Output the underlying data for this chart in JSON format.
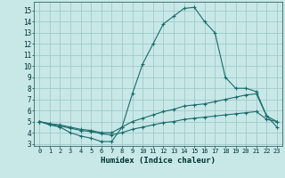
{
  "xlabel": "Humidex (Indice chaleur)",
  "background_color": "#c8e8e8",
  "grid_color": "#a0c8c8",
  "line_color": "#1a6b6b",
  "xlim": [
    -0.5,
    23.5
  ],
  "ylim": [
    2.8,
    15.8
  ],
  "xticks": [
    0,
    1,
    2,
    3,
    4,
    5,
    6,
    7,
    8,
    9,
    10,
    11,
    12,
    13,
    14,
    15,
    16,
    17,
    18,
    19,
    20,
    21,
    22,
    23
  ],
  "yticks": [
    3,
    4,
    5,
    6,
    7,
    8,
    9,
    10,
    11,
    12,
    13,
    14,
    15
  ],
  "curve1_x": [
    0,
    1,
    2,
    3,
    4,
    5,
    6,
    7,
    8,
    9,
    10,
    11,
    12,
    13,
    14,
    15,
    16,
    17,
    18,
    19,
    20,
    21,
    22,
    23
  ],
  "curve1_y": [
    5.0,
    4.7,
    4.5,
    4.0,
    3.7,
    3.5,
    3.2,
    3.2,
    4.5,
    7.5,
    10.2,
    12.0,
    13.8,
    14.5,
    15.2,
    15.3,
    14.0,
    13.0,
    9.0,
    8.0,
    8.0,
    7.7,
    5.5,
    4.5
  ],
  "curve2_x": [
    0,
    1,
    2,
    3,
    4,
    5,
    6,
    7,
    8,
    9,
    10,
    11,
    12,
    13,
    14,
    15,
    16,
    17,
    18,
    19,
    20,
    21,
    22,
    23
  ],
  "curve2_y": [
    5.0,
    4.8,
    4.7,
    4.5,
    4.3,
    4.2,
    4.0,
    4.0,
    4.5,
    5.0,
    5.3,
    5.6,
    5.9,
    6.1,
    6.4,
    6.5,
    6.6,
    6.8,
    7.0,
    7.2,
    7.4,
    7.5,
    5.5,
    5.0
  ],
  "curve3_x": [
    0,
    1,
    2,
    3,
    4,
    5,
    6,
    7,
    8,
    9,
    10,
    11,
    12,
    13,
    14,
    15,
    16,
    17,
    18,
    19,
    20,
    21,
    22,
    23
  ],
  "curve3_y": [
    5.0,
    4.8,
    4.6,
    4.4,
    4.2,
    4.1,
    3.9,
    3.8,
    4.0,
    4.3,
    4.5,
    4.7,
    4.9,
    5.0,
    5.2,
    5.3,
    5.4,
    5.5,
    5.6,
    5.7,
    5.8,
    5.9,
    5.2,
    5.0
  ]
}
